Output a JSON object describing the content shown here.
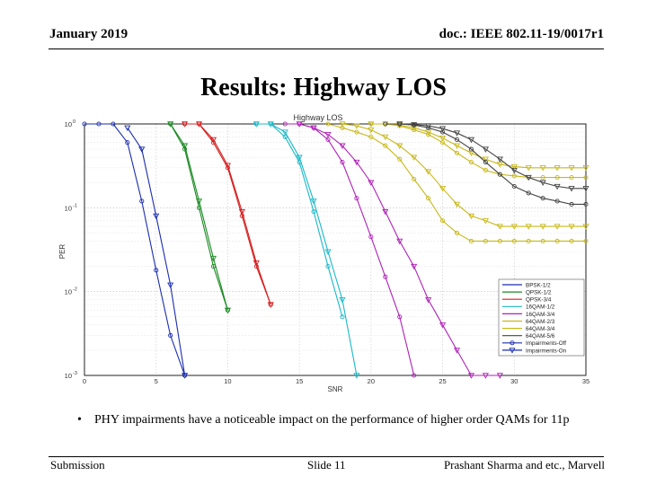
{
  "header": {
    "date": "January 2019",
    "doc": "doc.: IEEE 802.11-19/0017r1"
  },
  "title": "Results: Highway LOS",
  "bullet": {
    "marker": "•",
    "text": "PHY impairments have a noticeable impact on the performance of higher order QAMs for 11p"
  },
  "footer": {
    "left": "Submission",
    "center": "Slide 11",
    "right": "Prashant Sharma and etc., Marvell"
  },
  "chart_data": {
    "type": "line",
    "title": "Highway LOS",
    "xlabel": "SNR",
    "ylabel": "PER",
    "xlim": [
      0,
      35
    ],
    "ylim": [
      0.001,
      1
    ],
    "yscale": "log",
    "grid": true,
    "legend_position": "right",
    "x_ticks": [
      "0",
      "5",
      "10",
      "15",
      "20",
      "25",
      "30",
      "35"
    ],
    "y_ticks": [
      {
        "base": "10",
        "exp": "0",
        "value": 1
      },
      {
        "base": "10",
        "exp": "-1",
        "value": 0.1
      },
      {
        "base": "10",
        "exp": "-2",
        "value": 0.01
      },
      {
        "base": "10",
        "exp": "-3",
        "value": 0.001
      }
    ],
    "legend": [
      {
        "label": "BPSK-1/2",
        "color": "#1a2db0",
        "marker": "none"
      },
      {
        "label": "QPSK-1/2",
        "color": "#1a8a22",
        "marker": "none"
      },
      {
        "label": "QPSK-3/4",
        "color": "#d42020",
        "marker": "none"
      },
      {
        "label": "16QAM-1/2",
        "color": "#1ab8c8",
        "marker": "none"
      },
      {
        "label": "16QAM-3/4",
        "color": "#b020b8",
        "marker": "none"
      },
      {
        "label": "64QAM-2/3",
        "color": "#c8b818",
        "marker": "none"
      },
      {
        "label": "64QAM-3/4",
        "color": "#c8b818",
        "marker": "none"
      },
      {
        "label": "64QAM-5/6",
        "color": "#444444",
        "marker": "none"
      },
      {
        "label": "Impairments-Off",
        "color": "#1a2db0",
        "marker": "circle"
      },
      {
        "label": "Impairments-On",
        "color": "#1a2db0",
        "marker": "triangle"
      }
    ],
    "series": [
      {
        "name": "BPSK-1/2",
        "impairments": "Off",
        "color": "#1a2db0",
        "marker": "circle",
        "x": [
          0,
          1,
          2,
          3,
          4,
          5,
          6,
          7
        ],
        "y": [
          1,
          1,
          1,
          0.6,
          0.12,
          0.018,
          0.003,
          0.001
        ]
      },
      {
        "name": "BPSK-1/2",
        "impairments": "On",
        "color": "#1a2db0",
        "marker": "triangle",
        "x": [
          3,
          4,
          5,
          6,
          7
        ],
        "y": [
          0.9,
          0.5,
          0.08,
          0.012,
          0.001
        ]
      },
      {
        "name": "QPSK-1/2",
        "impairments": "Off",
        "color": "#1a8a22",
        "marker": "circle",
        "x": [
          6,
          7,
          8,
          9,
          10
        ],
        "y": [
          1,
          0.5,
          0.1,
          0.02,
          0.006
        ]
      },
      {
        "name": "QPSK-1/2",
        "impairments": "On",
        "color": "#1a8a22",
        "marker": "triangle",
        "x": [
          6,
          7,
          8,
          9,
          10
        ],
        "y": [
          1,
          0.55,
          0.12,
          0.025,
          0.006
        ]
      },
      {
        "name": "QPSK-3/4",
        "impairments": "Off",
        "color": "#d42020",
        "marker": "circle",
        "x": [
          7,
          8,
          9,
          10,
          11,
          12,
          13
        ],
        "y": [
          1,
          1,
          0.6,
          0.3,
          0.08,
          0.02,
          0.007
        ]
      },
      {
        "name": "QPSK-3/4",
        "impairments": "On",
        "color": "#d42020",
        "marker": "triangle",
        "x": [
          7,
          8,
          9,
          10,
          11,
          12,
          13
        ],
        "y": [
          1,
          1,
          0.65,
          0.32,
          0.09,
          0.022,
          0.007
        ]
      },
      {
        "name": "16QAM-1/2",
        "impairments": "Off",
        "color": "#1ab8c8",
        "marker": "circle",
        "x": [
          12,
          13,
          14,
          15,
          16,
          17,
          18
        ],
        "y": [
          1,
          1,
          0.7,
          0.35,
          0.09,
          0.02,
          0.005
        ]
      },
      {
        "name": "16QAM-1/2",
        "impairments": "On",
        "color": "#1ab8c8",
        "marker": "triangle",
        "x": [
          12,
          13,
          14,
          15,
          16,
          17,
          18,
          19
        ],
        "y": [
          1,
          1,
          0.8,
          0.4,
          0.12,
          0.03,
          0.008,
          0.001
        ]
      },
      {
        "name": "16QAM-3/4",
        "impairments": "Off",
        "color": "#b020b8",
        "marker": "circle",
        "x": [
          14,
          15,
          16,
          17,
          18,
          19,
          20,
          21,
          22,
          23
        ],
        "y": [
          1,
          1,
          0.9,
          0.65,
          0.35,
          0.13,
          0.045,
          0.015,
          0.005,
          0.001
        ]
      },
      {
        "name": "16QAM-3/4",
        "impairments": "On",
        "color": "#b020b8",
        "marker": "triangle",
        "x": [
          15,
          16,
          17,
          18,
          19,
          20,
          21,
          22,
          23,
          24,
          25,
          26,
          27,
          28,
          29
        ],
        "y": [
          1,
          0.9,
          0.75,
          0.55,
          0.35,
          0.2,
          0.09,
          0.04,
          0.02,
          0.008,
          0.004,
          0.002,
          0.001,
          0.001,
          0.001
        ]
      },
      {
        "name": "64QAM-2/3",
        "impairments": "Off",
        "color": "#c8b818",
        "marker": "circle",
        "x": [
          17,
          18,
          19,
          20,
          21,
          22,
          23,
          24,
          25,
          26,
          27,
          28,
          29,
          30,
          31,
          32,
          33,
          34,
          35
        ],
        "y": [
          1,
          0.9,
          0.8,
          0.7,
          0.55,
          0.38,
          0.22,
          0.13,
          0.07,
          0.05,
          0.04,
          0.04,
          0.04,
          0.04,
          0.04,
          0.04,
          0.04,
          0.04,
          0.04
        ]
      },
      {
        "name": "64QAM-2/3",
        "impairments": "On",
        "color": "#c8b818",
        "marker": "triangle",
        "x": [
          18,
          19,
          20,
          21,
          22,
          23,
          24,
          25,
          26,
          27,
          28,
          29,
          30,
          31,
          32,
          33,
          34,
          35
        ],
        "y": [
          1,
          0.95,
          0.85,
          0.7,
          0.55,
          0.4,
          0.27,
          0.17,
          0.11,
          0.08,
          0.07,
          0.06,
          0.06,
          0.06,
          0.06,
          0.06,
          0.06,
          0.06
        ]
      },
      {
        "name": "64QAM-3/4",
        "impairments": "Off",
        "color": "#c8b818",
        "marker": "circle",
        "x": [
          20,
          21,
          22,
          23,
          24,
          25,
          26,
          27,
          28,
          29,
          30,
          31,
          32,
          33,
          34,
          35
        ],
        "y": [
          1,
          1,
          0.95,
          0.85,
          0.75,
          0.6,
          0.45,
          0.35,
          0.28,
          0.25,
          0.24,
          0.23,
          0.23,
          0.23,
          0.23,
          0.23
        ]
      },
      {
        "name": "64QAM-3/4",
        "impairments": "On",
        "color": "#c8b818",
        "marker": "triangle",
        "x": [
          20,
          21,
          22,
          23,
          24,
          25,
          26,
          27,
          28,
          29,
          30,
          31,
          32,
          33,
          34,
          35
        ],
        "y": [
          1,
          1,
          0.97,
          0.9,
          0.8,
          0.68,
          0.55,
          0.45,
          0.38,
          0.33,
          0.31,
          0.3,
          0.3,
          0.3,
          0.3,
          0.3
        ]
      },
      {
        "name": "64QAM-5/6",
        "impairments": "Off",
        "color": "#444444",
        "marker": "circle",
        "x": [
          21,
          22,
          23,
          24,
          25,
          26,
          27,
          28,
          29,
          30,
          31,
          32,
          33,
          34,
          35
        ],
        "y": [
          1,
          1,
          0.97,
          0.9,
          0.8,
          0.65,
          0.5,
          0.35,
          0.25,
          0.18,
          0.15,
          0.13,
          0.12,
          0.11,
          0.11
        ]
      },
      {
        "name": "64QAM-5/6",
        "impairments": "On",
        "color": "#444444",
        "marker": "triangle",
        "x": [
          22,
          23,
          24,
          25,
          26,
          27,
          28,
          29,
          30,
          31,
          32,
          33,
          34,
          35
        ],
        "y": [
          1,
          0.98,
          0.95,
          0.88,
          0.78,
          0.65,
          0.5,
          0.38,
          0.28,
          0.23,
          0.2,
          0.18,
          0.17,
          0.17
        ]
      }
    ]
  }
}
